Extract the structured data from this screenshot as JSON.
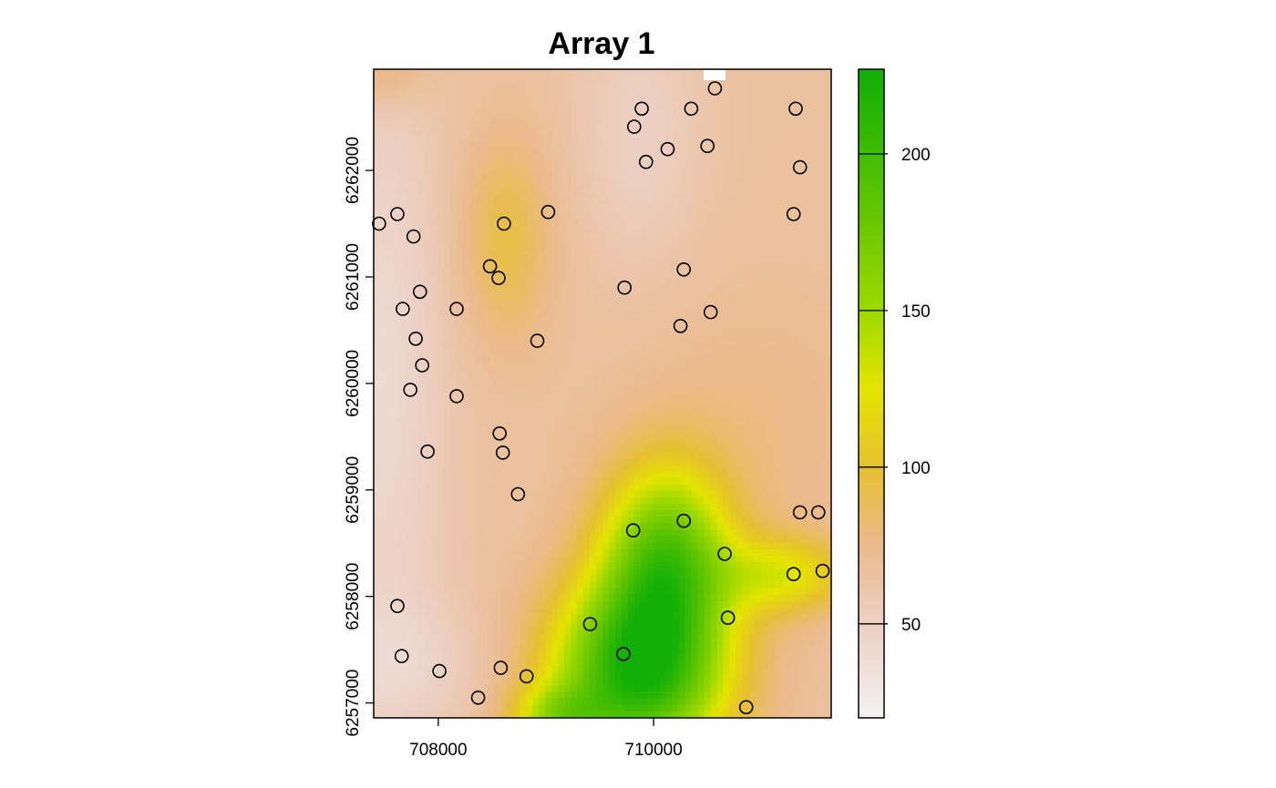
{
  "chart_data": {
    "type": "heatmap",
    "title": "Array 1",
    "xlabel": "",
    "ylabel": "",
    "xlim": [
      707400,
      711650
    ],
    "ylim": [
      6256860,
      6262950
    ],
    "x_ticks": [
      708000,
      710000
    ],
    "x_tick_labels": [
      "708000",
      "710000"
    ],
    "y_ticks": [
      6257000,
      6258000,
      6259000,
      6260000,
      6261000,
      6262000
    ],
    "y_tick_labels": [
      "6257000",
      "6258000",
      "6259000",
      "6260000",
      "6261000",
      "6262000"
    ],
    "colorbar": {
      "range": [
        20,
        227
      ],
      "ticks": [
        50,
        100,
        150,
        200
      ],
      "tick_labels": [
        "50",
        "100",
        "150",
        "200"
      ],
      "colors": [
        {
          "value": 20,
          "color": "#f2f2f2"
        },
        {
          "value": 50,
          "color": "#eccfc3"
        },
        {
          "value": 75,
          "color": "#ebba8c"
        },
        {
          "value": 100,
          "color": "#e6c030"
        },
        {
          "value": 125,
          "color": "#e5e400"
        },
        {
          "value": 150,
          "color": "#9dd900"
        },
        {
          "value": 175,
          "color": "#6fc900"
        },
        {
          "value": 227,
          "color": "#0fae07"
        }
      ]
    },
    "points": [
      {
        "x": 710570,
        "y": 6262770
      },
      {
        "x": 710350,
        "y": 6262580
      },
      {
        "x": 710500,
        "y": 6262230
      },
      {
        "x": 709890,
        "y": 6262580
      },
      {
        "x": 709820,
        "y": 6262410
      },
      {
        "x": 709930,
        "y": 6262080
      },
      {
        "x": 710130,
        "y": 6262200
      },
      {
        "x": 711320,
        "y": 6262580
      },
      {
        "x": 711360,
        "y": 6262030
      },
      {
        "x": 711300,
        "y": 6261590
      },
      {
        "x": 707450,
        "y": 6261500
      },
      {
        "x": 707620,
        "y": 6261590
      },
      {
        "x": 707770,
        "y": 6261380
      },
      {
        "x": 708480,
        "y": 6261100
      },
      {
        "x": 708560,
        "y": 6260990
      },
      {
        "x": 708170,
        "y": 6260700
      },
      {
        "x": 707830,
        "y": 6260860
      },
      {
        "x": 707670,
        "y": 6260700
      },
      {
        "x": 707790,
        "y": 6260420
      },
      {
        "x": 707850,
        "y": 6260170
      },
      {
        "x": 707740,
        "y": 6259940
      },
      {
        "x": 708610,
        "y": 6261500
      },
      {
        "x": 709020,
        "y": 6261610
      },
      {
        "x": 708920,
        "y": 6260400
      },
      {
        "x": 709730,
        "y": 6260900
      },
      {
        "x": 710280,
        "y": 6261070
      },
      {
        "x": 710250,
        "y": 6260540
      },
      {
        "x": 710530,
        "y": 6260670
      },
      {
        "x": 708170,
        "y": 6259880
      },
      {
        "x": 708570,
        "y": 6259530
      },
      {
        "x": 708600,
        "y": 6259350
      },
      {
        "x": 707900,
        "y": 6259360
      },
      {
        "x": 708740,
        "y": 6258960
      },
      {
        "x": 709810,
        "y": 6258620
      },
      {
        "x": 710280,
        "y": 6258710
      },
      {
        "x": 710660,
        "y": 6258400
      },
      {
        "x": 711360,
        "y": 6258790
      },
      {
        "x": 711530,
        "y": 6258790
      },
      {
        "x": 711300,
        "y": 6258210
      },
      {
        "x": 711570,
        "y": 6258240
      },
      {
        "x": 707620,
        "y": 6257910
      },
      {
        "x": 707660,
        "y": 6257440
      },
      {
        "x": 708010,
        "y": 6257300
      },
      {
        "x": 708580,
        "y": 6257330
      },
      {
        "x": 708820,
        "y": 6257250
      },
      {
        "x": 709410,
        "y": 6257740
      },
      {
        "x": 709720,
        "y": 6257460
      },
      {
        "x": 710690,
        "y": 6257800
      },
      {
        "x": 708370,
        "y": 6257050
      },
      {
        "x": 710860,
        "y": 6256960
      }
    ]
  }
}
